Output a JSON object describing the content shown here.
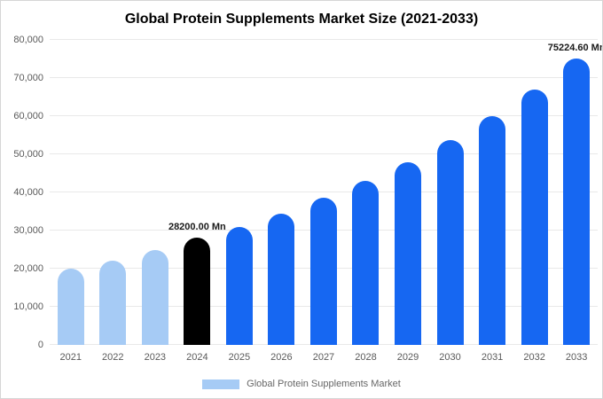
{
  "title": "Global Protein Supplements Market Size (2021-2033)",
  "legend": {
    "label": "Global Protein Supplements Market"
  },
  "colors": {
    "light_blue": "#A6CBF5",
    "blue": "#1667F2",
    "black": "#000000",
    "grid": "#e9e9e9",
    "axis_text": "#595959"
  },
  "chart_data": {
    "type": "bar",
    "title": "Global Protein Supplements Market Size (2021-2033)",
    "categories": [
      "2021",
      "2022",
      "2023",
      "2024",
      "2025",
      "2026",
      "2027",
      "2028",
      "2029",
      "2030",
      "2031",
      "2032",
      "2033"
    ],
    "values": [
      19900,
      22100,
      24800,
      28200,
      31000,
      34500,
      38500,
      43000,
      48000,
      53700,
      59900,
      67000,
      75224.6
    ],
    "bar_colors": [
      "light",
      "light",
      "light",
      "black",
      "blue",
      "blue",
      "blue",
      "blue",
      "blue",
      "blue",
      "blue",
      "blue",
      "blue"
    ],
    "annotations": [
      {
        "index": 3,
        "year": "2024",
        "text": "28200.00 Mn"
      },
      {
        "index": 12,
        "year": "2033",
        "text": "75224.60 Mn"
      }
    ],
    "xlabel": "",
    "ylabel": "",
    "ylim": [
      0,
      80000
    ],
    "yticks": [
      {
        "value": 0,
        "label": "0"
      },
      {
        "value": 10000,
        "label": "10,000"
      },
      {
        "value": 20000,
        "label": "20,000"
      },
      {
        "value": 30000,
        "label": "30,000"
      },
      {
        "value": 40000,
        "label": "40,000"
      },
      {
        "value": 50000,
        "label": "50,000"
      },
      {
        "value": 60000,
        "label": "60,000"
      },
      {
        "value": 70000,
        "label": "70,000"
      },
      {
        "value": 80000,
        "label": "80,000"
      }
    ],
    "grid": true,
    "legend_position": "bottom",
    "unit": "Mn"
  }
}
